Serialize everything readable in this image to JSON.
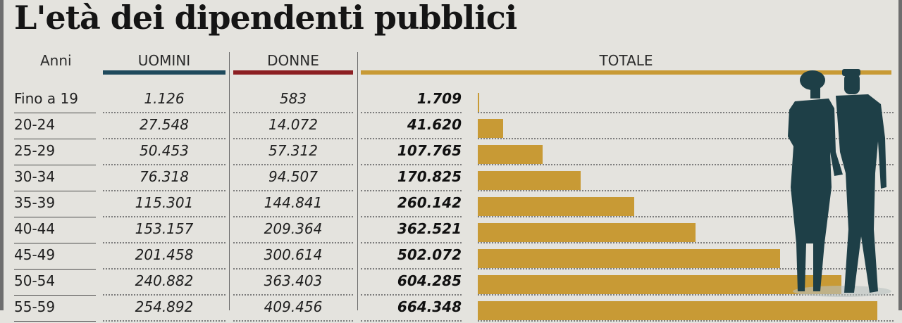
{
  "title": "L'età dei dipendenti pubblici",
  "headers": {
    "age": "Anni",
    "men": "UOMINI",
    "women": "DONNE",
    "total": "TOTALE"
  },
  "colors": {
    "men": "#1f4a5c",
    "women": "#8c1f22",
    "total": "#c89a35",
    "figures": "#1e3f47"
  },
  "illustration": "man-and-woman-silhouette",
  "rows": [
    {
      "age": "Fino a 19",
      "men": "1.126",
      "women": "583",
      "total": "1.709"
    },
    {
      "age": "20-24",
      "men": "27.548",
      "women": "14.072",
      "total": "41.620"
    },
    {
      "age": "25-29",
      "men": "50.453",
      "women": "57.312",
      "total": "107.765"
    },
    {
      "age": "30-34",
      "men": "76.318",
      "women": "94.507",
      "total": "170.825"
    },
    {
      "age": "35-39",
      "men": "115.301",
      "women": "144.841",
      "total": "260.142"
    },
    {
      "age": "40-44",
      "men": "153.157",
      "women": "209.364",
      "total": "362.521"
    },
    {
      "age": "45-49",
      "men": "201.458",
      "women": "300.614",
      "total": "502.072"
    },
    {
      "age": "50-54",
      "men": "240.882",
      "women": "363.403",
      "total": "604.285"
    },
    {
      "age": "55-59",
      "men": "254.892",
      "women": "409.456",
      "total": "664.348"
    }
  ],
  "chart_data": {
    "type": "bar",
    "title": "L'età dei dipendenti pubblici",
    "categories": [
      "Fino a 19",
      "20-24",
      "25-29",
      "30-34",
      "35-39",
      "40-44",
      "45-49",
      "50-54",
      "55-59"
    ],
    "series": [
      {
        "name": "UOMINI",
        "values": [
          1126,
          27548,
          50453,
          76318,
          115301,
          153157,
          201458,
          240882,
          254892
        ]
      },
      {
        "name": "DONNE",
        "values": [
          583,
          14072,
          57312,
          94507,
          144841,
          209364,
          300614,
          363403,
          409456
        ]
      },
      {
        "name": "TOTALE",
        "values": [
          1709,
          41620,
          107765,
          170825,
          260142,
          362521,
          502072,
          604285,
          664348
        ]
      }
    ],
    "orientation": "horizontal",
    "xlim": [
      0,
      664348
    ]
  }
}
